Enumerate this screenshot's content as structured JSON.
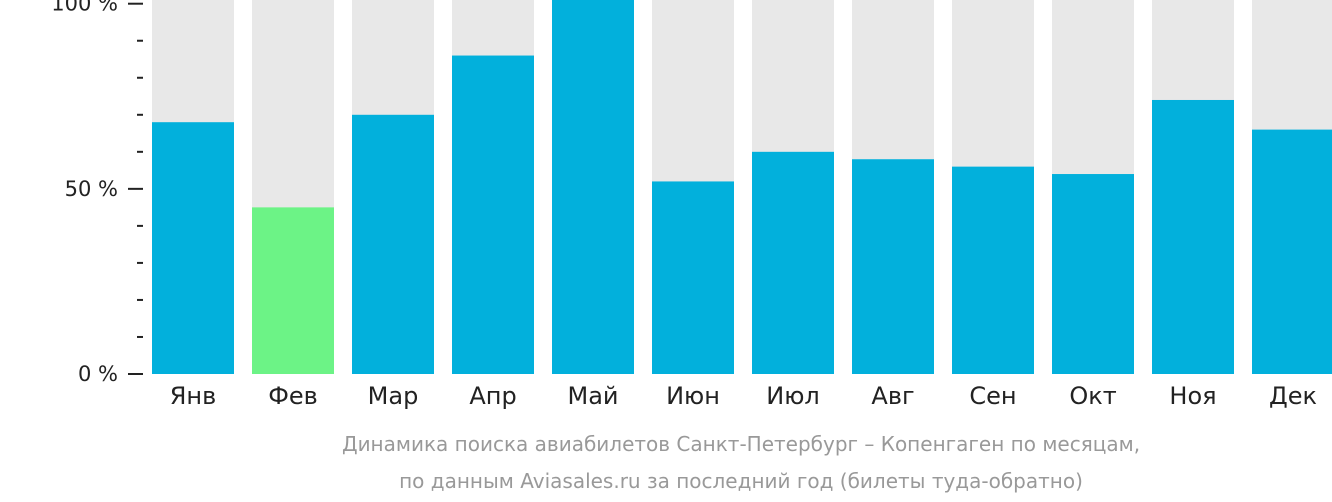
{
  "chart_data": {
    "type": "bar",
    "categories": [
      "Янв",
      "Фев",
      "Мар",
      "Апр",
      "Май",
      "Июн",
      "Июл",
      "Авг",
      "Сен",
      "Окт",
      "Ноя",
      "Дек"
    ],
    "values": [
      68,
      45,
      70,
      86,
      101,
      52,
      60,
      58,
      56,
      54,
      74,
      66
    ],
    "ylim": [
      0,
      101
    ],
    "yticks": [
      {
        "value": 0,
        "label": "0 %"
      },
      {
        "value": 50,
        "label": "50 %"
      },
      {
        "value": 100,
        "label": "100 %"
      }
    ],
    "minor_tick_step": 10,
    "highlight_index": 1,
    "colors": {
      "bar": "#02b0dc",
      "highlight": "#6cf386",
      "track": "#e8e8e8",
      "axis": "#222222"
    },
    "caption": [
      "Динамика поиска авиабилетов Санкт-Петербург – Копенгаген по месяцам,",
      "по данным Aviasales.ru за последний год (билеты туда-обратно)"
    ]
  }
}
